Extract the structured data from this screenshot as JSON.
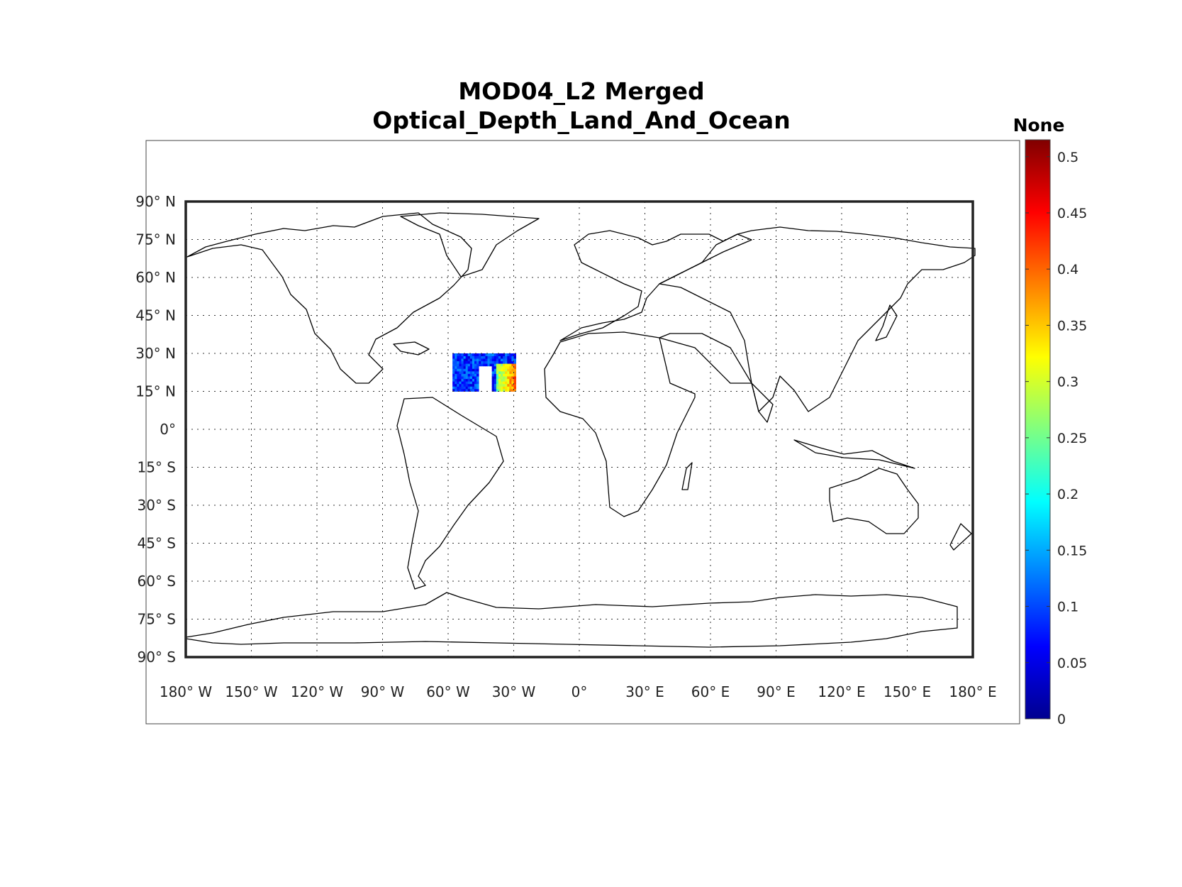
{
  "title": {
    "line1": "MOD04_L2 Merged",
    "line2": "Optical_Depth_Land_And_Ocean"
  },
  "colorbar": {
    "label": "None",
    "min": 0,
    "max": 0.515,
    "ticks": [
      {
        "value": 0,
        "label": "0"
      },
      {
        "value": 0.05,
        "label": "0.05"
      },
      {
        "value": 0.1,
        "label": "0.1"
      },
      {
        "value": 0.15,
        "label": "0.15"
      },
      {
        "value": 0.2,
        "label": "0.2"
      },
      {
        "value": 0.25,
        "label": "0.25"
      },
      {
        "value": 0.3,
        "label": "0.3"
      },
      {
        "value": 0.35,
        "label": "0.35"
      },
      {
        "value": 0.4,
        "label": "0.4"
      },
      {
        "value": 0.45,
        "label": "0.45"
      },
      {
        "value": 0.5,
        "label": "0.5"
      }
    ],
    "colormap": [
      "#00008f",
      "#0000ff",
      "#0080ff",
      "#00ffff",
      "#80ff80",
      "#ffff00",
      "#ff8000",
      "#ff0000",
      "#800000"
    ]
  },
  "map": {
    "projection": "equirectangular",
    "lon_range": [
      -180,
      180
    ],
    "lat_range": [
      -90,
      90
    ],
    "grid_step_degrees": 30,
    "lat_ticks": [
      {
        "value": 90,
        "label": "90° N"
      },
      {
        "value": 75,
        "label": "75° N"
      },
      {
        "value": 60,
        "label": "60° N"
      },
      {
        "value": 45,
        "label": "45° N"
      },
      {
        "value": 30,
        "label": "30° N"
      },
      {
        "value": 15,
        "label": "15° N"
      },
      {
        "value": 0,
        "label": "0°"
      },
      {
        "value": -15,
        "label": "15° S"
      },
      {
        "value": -30,
        "label": "30° S"
      },
      {
        "value": -45,
        "label": "45° S"
      },
      {
        "value": -60,
        "label": "60° S"
      },
      {
        "value": -75,
        "label": "75° S"
      },
      {
        "value": -90,
        "label": "90° S"
      }
    ],
    "lon_ticks": [
      {
        "value": -180,
        "label": "180° W"
      },
      {
        "value": -150,
        "label": "150° W"
      },
      {
        "value": -120,
        "label": "120° W"
      },
      {
        "value": -90,
        "label": "90° W"
      },
      {
        "value": -60,
        "label": "60° W"
      },
      {
        "value": -30,
        "label": "30° W"
      },
      {
        "value": 0,
        "label": "0°"
      },
      {
        "value": 30,
        "label": "30° E"
      },
      {
        "value": 60,
        "label": "60° E"
      },
      {
        "value": 90,
        "label": "90° E"
      },
      {
        "value": 120,
        "label": "120° E"
      },
      {
        "value": 150,
        "label": "150° E"
      },
      {
        "value": 180,
        "label": "180° E"
      }
    ]
  },
  "chart_data": {
    "type": "heatmap",
    "title": "MOD04_L2 Merged Optical_Depth_Land_And_Ocean",
    "variable": "Optical_Depth_Land_And_Ocean",
    "units": "None",
    "value_range": [
      0,
      0.515
    ],
    "swath": {
      "lon_range": [
        -58,
        -29
      ],
      "lat_range": [
        15,
        30
      ],
      "dominant_values": "0.05-0.15 over most of the swath",
      "high_values_region": {
        "lon_range": [
          -38,
          -29
        ],
        "lat_range": [
          15,
          26
        ],
        "values": "0.25-0.45"
      },
      "missing_region": {
        "lon_range": [
          -46,
          -40
        ],
        "lat_range": [
          15,
          25
        ]
      }
    }
  }
}
